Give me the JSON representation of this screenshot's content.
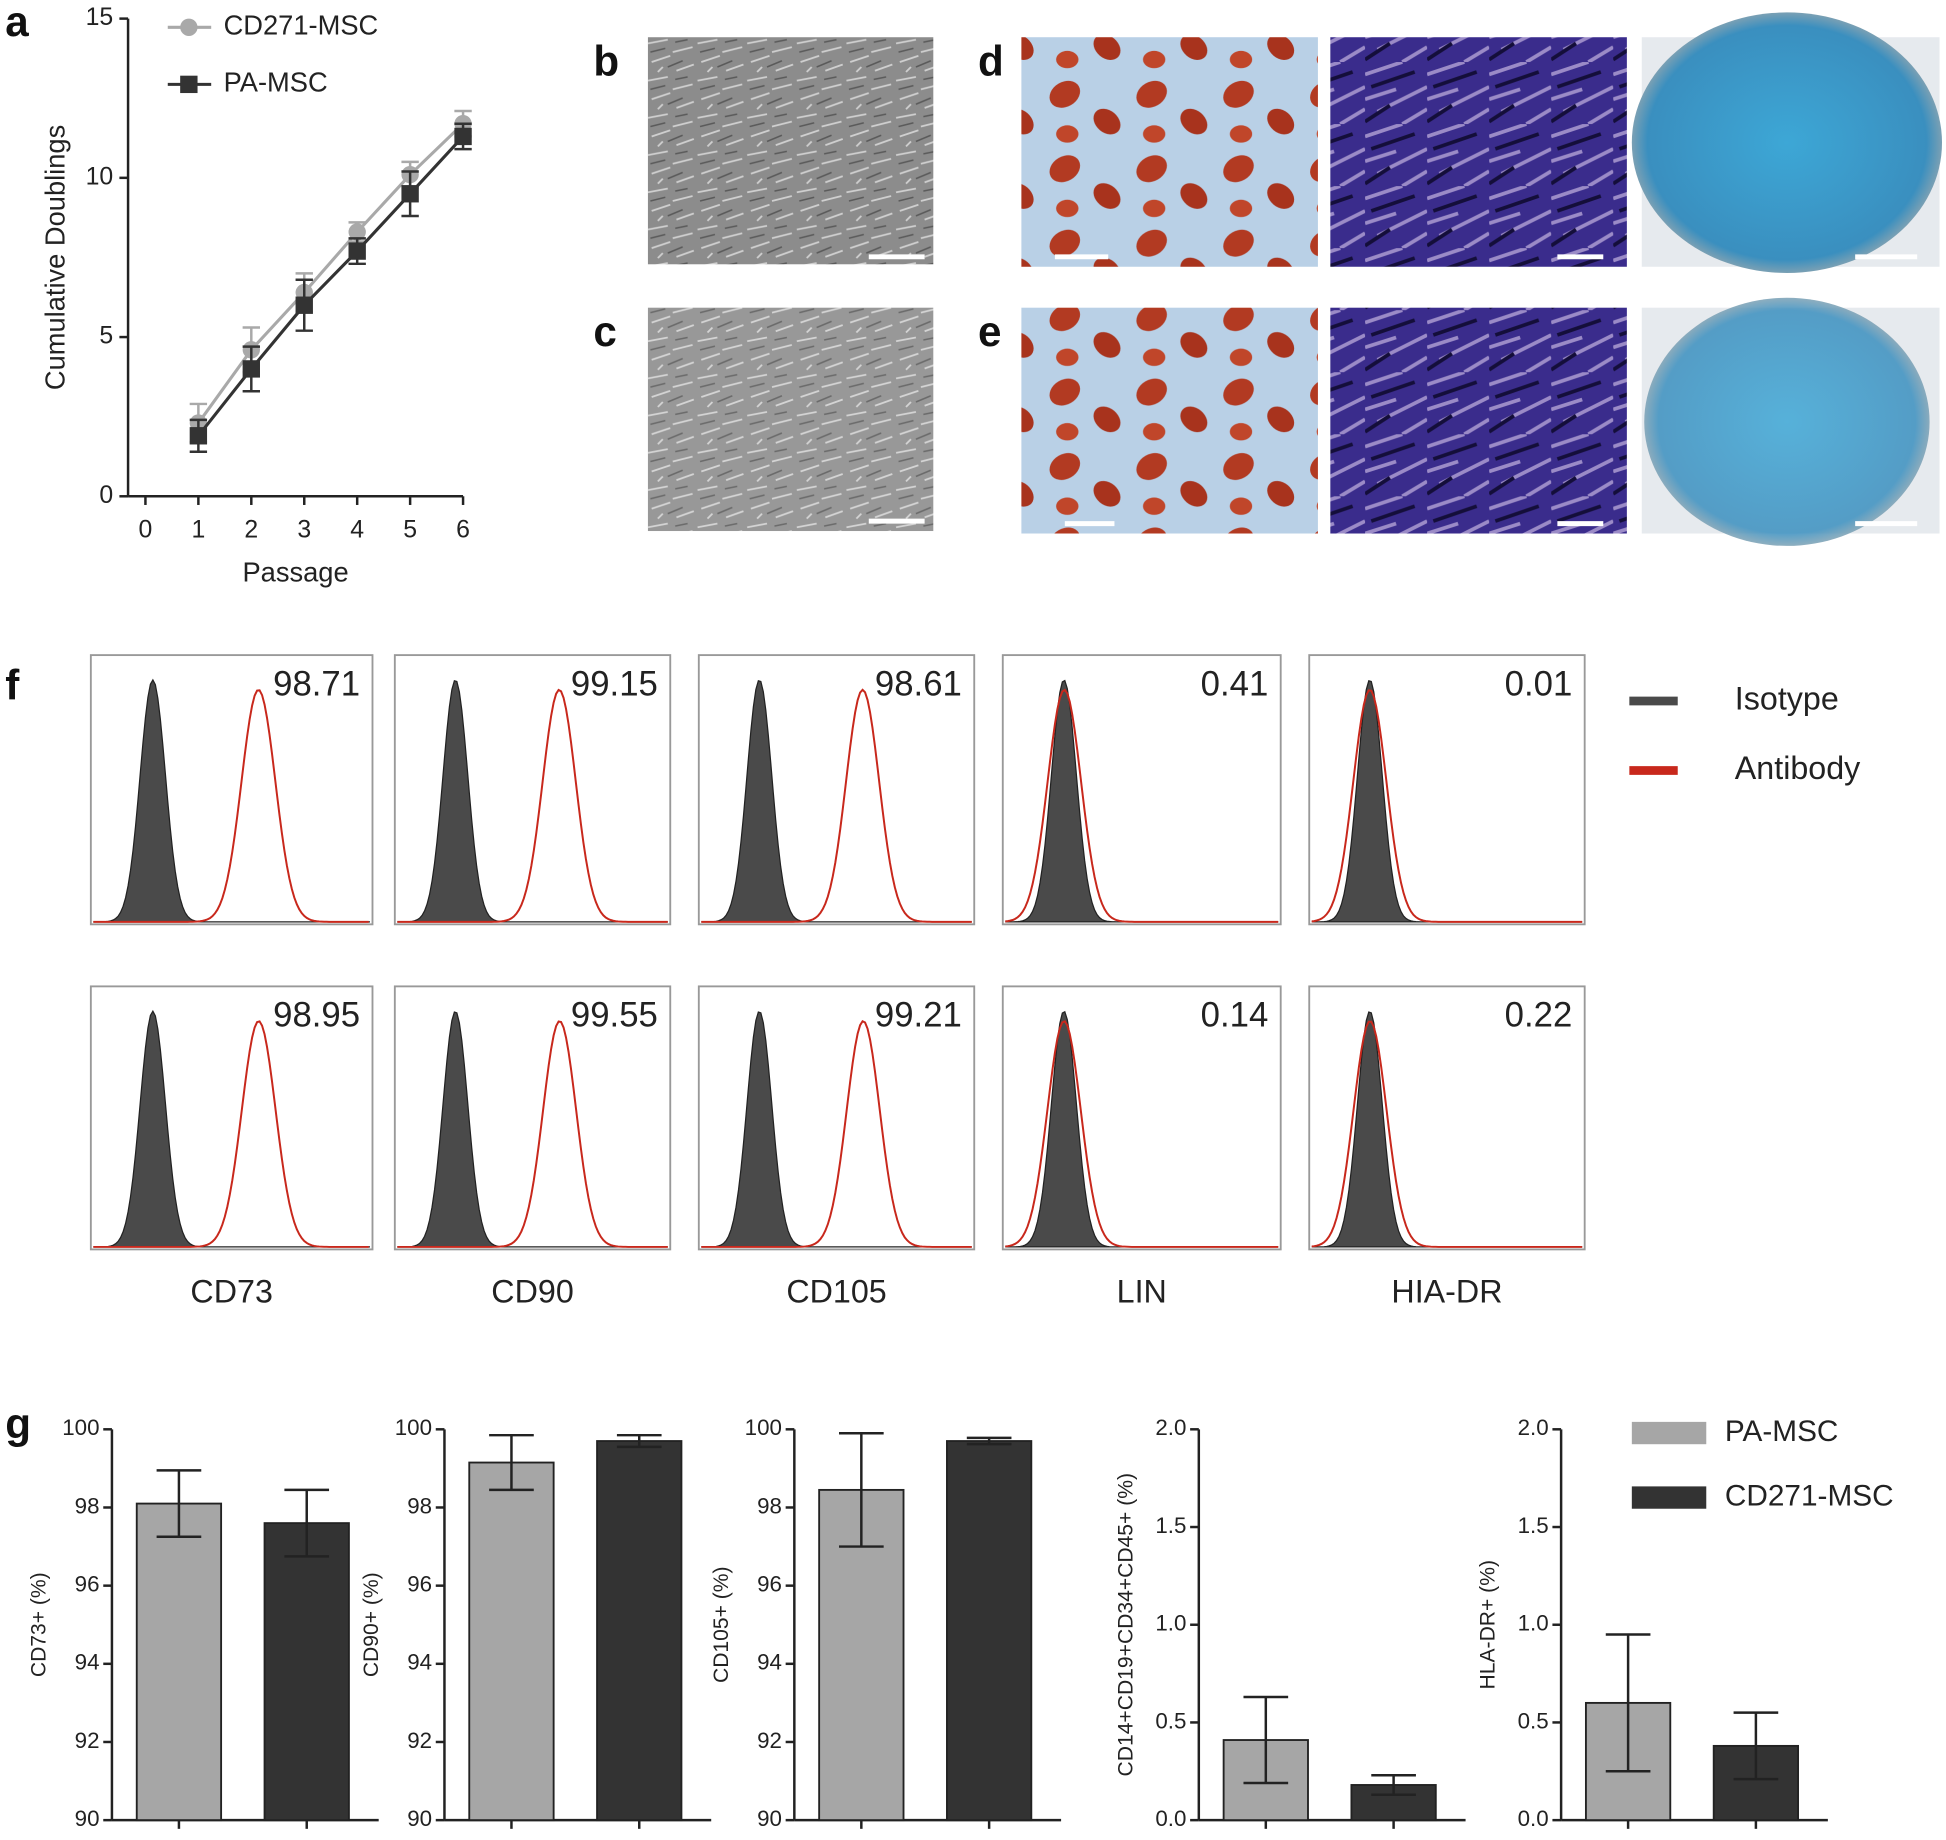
{
  "micrographs": [
    {
      "label": "b"
    },
    {
      "label": "c"
    },
    {
      "label": "d"
    },
    {
      "label": "e"
    }
  ],
  "chart_data": [
    {
      "type": "line",
      "label": "a",
      "xlabel": "Passage",
      "ylabel": "Cumulative Doublings",
      "x": [
        1,
        2,
        3,
        4,
        5,
        6
      ],
      "xlim": [
        0,
        6
      ],
      "xticks": [
        0,
        1,
        2,
        3,
        4,
        5,
        6
      ],
      "ylim": [
        0,
        15
      ],
      "yticks": [
        0,
        5,
        10,
        15
      ],
      "series": [
        {
          "name": "CD271-MSC",
          "color": "#a9a9a9",
          "marker": "circle",
          "values": [
            2.3,
            4.6,
            6.4,
            8.3,
            10.1,
            11.7
          ],
          "errors": [
            0.6,
            0.7,
            0.6,
            0.3,
            0.4,
            0.4
          ]
        },
        {
          "name": "PA-MSC",
          "color": "#333333",
          "marker": "square",
          "values": [
            1.9,
            4.0,
            6.0,
            7.7,
            9.5,
            11.3
          ],
          "errors": [
            0.5,
            0.7,
            0.8,
            0.4,
            0.7,
            0.4
          ]
        }
      ]
    },
    {
      "type": "flow",
      "label": "f",
      "markers": [
        "CD73",
        "CD90",
        "CD105",
        "LIN",
        "HIA-DR"
      ],
      "rows": [
        {
          "values": [
            98.71,
            99.15,
            98.61,
            0.41,
            0.01
          ]
        },
        {
          "values": [
            98.95,
            99.55,
            99.21,
            0.14,
            0.22
          ]
        }
      ],
      "series": [
        {
          "name": "Isotype",
          "color": "#4a4a4a"
        },
        {
          "name": "Antibody",
          "color": "#c8281c"
        }
      ]
    },
    {
      "type": "bar-panels",
      "label": "g",
      "series": [
        {
          "name": "PA-MSC",
          "color": "#a6a6a6"
        },
        {
          "name": "CD271-MSC",
          "color": "#333333"
        }
      ],
      "panels": [
        {
          "ylabel": "CD73+ (%)",
          "ylim": [
            90,
            100
          ],
          "yticks": [
            90,
            92,
            94,
            96,
            98,
            100
          ],
          "values": [
            98.1,
            97.6
          ],
          "errors": [
            0.85,
            0.85
          ]
        },
        {
          "ylabel": "CD90+ (%)",
          "ylim": [
            90,
            100
          ],
          "yticks": [
            90,
            92,
            94,
            96,
            98,
            100
          ],
          "values": [
            99.15,
            99.7
          ],
          "errors": [
            0.7,
            0.15
          ]
        },
        {
          "ylabel": "CD105+ (%)",
          "ylim": [
            90,
            100
          ],
          "yticks": [
            90,
            92,
            94,
            96,
            98,
            100
          ],
          "values": [
            98.45,
            99.7
          ],
          "errors": [
            1.45,
            0.08
          ]
        },
        {
          "ylabel": "CD14+CD19+CD34+CD45+ (%)",
          "ylim": [
            0,
            2
          ],
          "yticks": [
            {
              "value": 0,
              "label": "0.0"
            },
            0.5,
            {
              "value": 1,
              "label": "1.0"
            },
            1.5,
            {
              "value": 2,
              "label": "2.0"
            }
          ],
          "values": [
            0.41,
            0.18
          ],
          "errors": [
            0.22,
            0.05
          ]
        },
        {
          "ylabel": "HLA-DR+ (%)",
          "ylim": [
            0,
            2
          ],
          "yticks": [
            {
              "value": 0,
              "label": "0.0"
            },
            0.5,
            {
              "value": 1,
              "label": "1.0"
            },
            1.5,
            {
              "value": 2,
              "label": "2.0"
            }
          ],
          "values": [
            0.6,
            0.38
          ],
          "errors": [
            0.35,
            0.17
          ]
        }
      ]
    }
  ]
}
